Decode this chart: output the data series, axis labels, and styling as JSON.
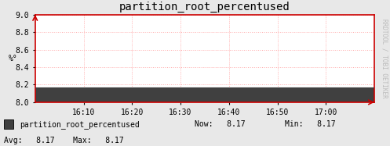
{
  "title": "partition_root_percentused",
  "bg_color": "#e8e8e8",
  "plot_bg_color": "#ffffff",
  "fill_color": "#404040",
  "grid_color": "#ffaaaa",
  "grid_linestyle": ":",
  "spine_color": "#cc0000",
  "ylabel": "%°",
  "ylim": [
    8.0,
    9.0
  ],
  "yticks": [
    8.0,
    8.2,
    8.4,
    8.6,
    8.8,
    9.0
  ],
  "xtick_labels": [
    "16:10",
    "16:20",
    "16:30",
    "16:40",
    "16:50",
    "17:00"
  ],
  "n_xticks": 6,
  "data_value": 8.17,
  "legend_label": "partition_root_percentused",
  "now_val": "8.17",
  "min_val": "8.17",
  "avg_val": "8.17",
  "max_val": "8.17",
  "watermark": "RRDTOOL / TOBI OETIKER",
  "title_fontsize": 10,
  "tick_fontsize": 7,
  "legend_fontsize": 7,
  "watermark_fontsize": 5.5
}
